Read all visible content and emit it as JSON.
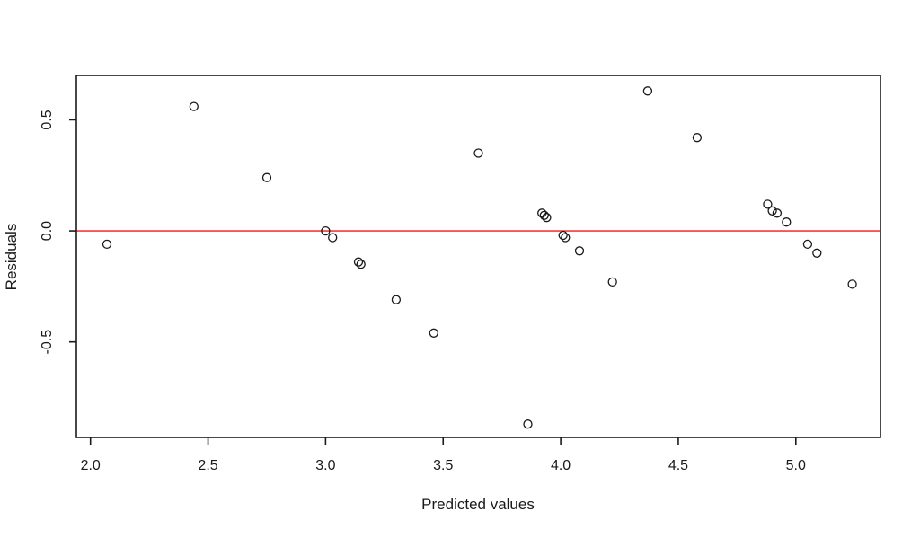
{
  "chart_data": {
    "type": "scatter",
    "title": "",
    "xlabel": "Predicted values",
    "ylabel": "Residuals",
    "xlim": [
      1.94,
      5.36
    ],
    "ylim": [
      -0.93,
      0.7
    ],
    "grid": false,
    "legend": null,
    "marker": "open-circle",
    "xticks": [
      {
        "v": 2.0,
        "label": "2.0"
      },
      {
        "v": 2.5,
        "label": "2.5"
      },
      {
        "v": 3.0,
        "label": "3.0"
      },
      {
        "v": 3.5,
        "label": "3.5"
      },
      {
        "v": 4.0,
        "label": "4.0"
      },
      {
        "v": 4.5,
        "label": "4.5"
      },
      {
        "v": 5.0,
        "label": "5.0"
      }
    ],
    "yticks": [
      {
        "v": -0.5,
        "label": "-0.5"
      },
      {
        "v": 0.0,
        "label": "0.0"
      },
      {
        "v": 0.5,
        "label": "0.5"
      }
    ],
    "reference_line": {
      "y": 0,
      "color": "#f75555"
    },
    "points": [
      [
        2.07,
        -0.06
      ],
      [
        2.44,
        0.56
      ],
      [
        2.75,
        0.24
      ],
      [
        3.0,
        0.0
      ],
      [
        3.03,
        -0.03
      ],
      [
        3.14,
        -0.14
      ],
      [
        3.15,
        -0.15
      ],
      [
        3.3,
        -0.31
      ],
      [
        3.46,
        -0.46
      ],
      [
        3.65,
        0.35
      ],
      [
        3.86,
        -0.87
      ],
      [
        3.92,
        0.08
      ],
      [
        3.93,
        0.07
      ],
      [
        3.94,
        0.06
      ],
      [
        4.01,
        -0.02
      ],
      [
        4.02,
        -0.03
      ],
      [
        4.08,
        -0.09
      ],
      [
        4.22,
        -0.23
      ],
      [
        4.37,
        0.63
      ],
      [
        4.58,
        0.42
      ],
      [
        4.88,
        0.12
      ],
      [
        4.9,
        0.09
      ],
      [
        4.92,
        0.08
      ],
      [
        4.96,
        0.04
      ],
      [
        5.05,
        -0.06
      ],
      [
        5.09,
        -0.1
      ],
      [
        5.24,
        -0.24
      ]
    ]
  },
  "style": {
    "background": "#ffffff",
    "axis_color": "#1a1a1a",
    "point_color": "#1a1a1a",
    "ref_line_color": "#f75555"
  }
}
